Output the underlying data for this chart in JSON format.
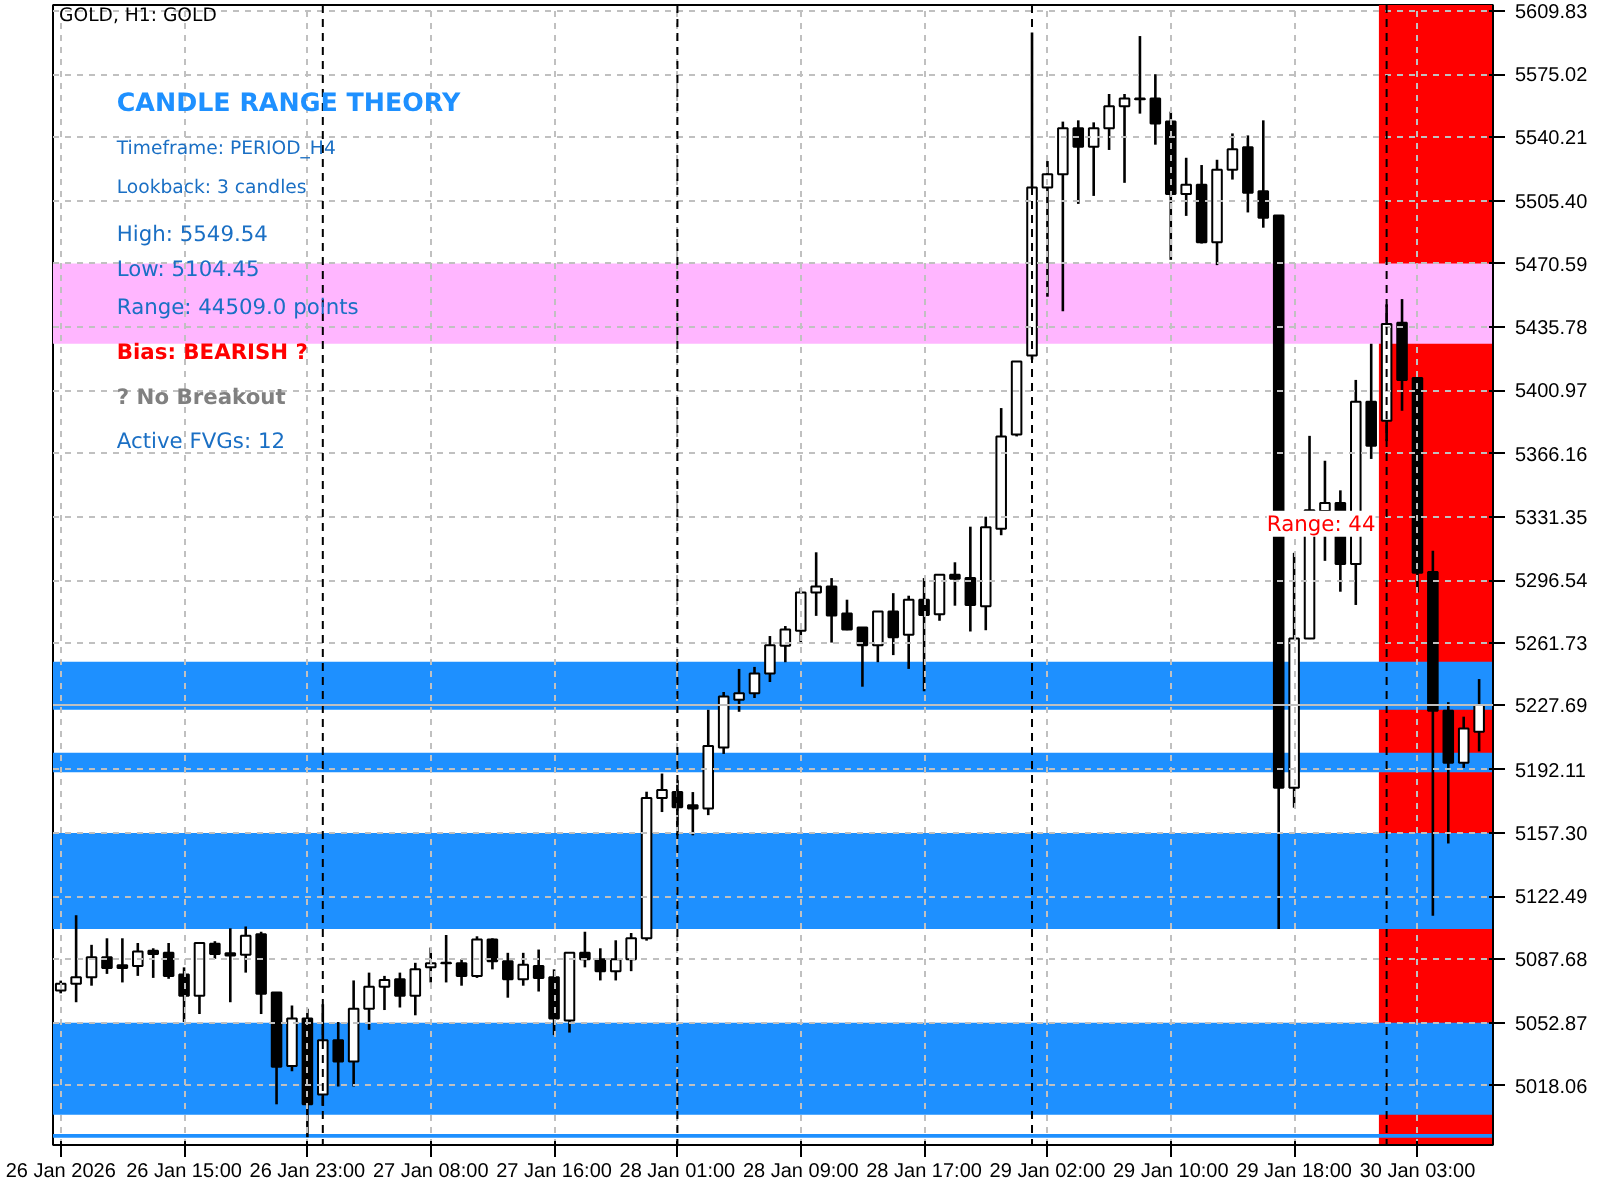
{
  "chart_data": {
    "type": "candlestick",
    "title": "GOLD, H1:  GOLD",
    "annotations": [
      "CANDLE RANGE THEORY",
      "Timeframe: PERIOD_H4",
      "Lookback: 3 candles",
      "High: 5549.54",
      "Low:  5104.45",
      "Range: 44509.0 points",
      "Bias: BEARISH ?",
      "? No Breakout",
      "Active FVGs: 12",
      "Range: 44"
    ],
    "categories": [
      "26 Jan 2026",
      null,
      null,
      null,
      null,
      null,
      null,
      null,
      "26 Jan 15:00",
      null,
      null,
      null,
      null,
      null,
      null,
      null,
      "26 Jan 23:00",
      null,
      null,
      null,
      null,
      null,
      null,
      null,
      "27 Jan 08:00",
      null,
      null,
      null,
      null,
      null,
      null,
      null,
      "27 Jan 16:00",
      null,
      null,
      null,
      null,
      null,
      null,
      null,
      "28 Jan 01:00",
      null,
      null,
      null,
      null,
      null,
      null,
      null,
      "28 Jan 09:00",
      null,
      null,
      null,
      null,
      null,
      null,
      null,
      "28 Jan 17:00",
      null,
      null,
      null,
      null,
      null,
      null,
      null,
      "29 Jan 02:00",
      null,
      null,
      null,
      null,
      null,
      null,
      null,
      "29 Jan 10:00",
      null,
      null,
      null,
      null,
      null,
      null,
      null,
      "29 Jan 18:00",
      null,
      null,
      null,
      null,
      null,
      null,
      null,
      "30 Jan 03:00",
      null,
      null,
      null,
      null
    ],
    "ohlc": [
      [
        5070.6,
        5076,
        5069,
        5074.3
      ],
      [
        5074.3,
        5112,
        5064.1,
        5077.9
      ],
      [
        5077.9,
        5095.7,
        5073.2,
        5088.8
      ],
      [
        5088.8,
        5099.3,
        5079.7,
        5083.0
      ],
      [
        5084.4,
        5099.3,
        5075,
        5083.0
      ],
      [
        5084.1,
        5096.7,
        5078.6,
        5092.0
      ],
      [
        5092.4,
        5093.8,
        5077.5,
        5090.6
      ],
      [
        5091.3,
        5096.7,
        5077,
        5078.6
      ],
      [
        5079.3,
        5083.3,
        5053.2,
        5067.7
      ],
      [
        5067.7,
        5096.7,
        5057.6,
        5096.7
      ],
      [
        5096.3,
        5097.7,
        5088,
        5090.6
      ],
      [
        5091,
        5104.8,
        5064.1,
        5089.8
      ],
      [
        5090.2,
        5105.8,
        5080.4,
        5100.7
      ],
      [
        5101.5,
        5102.9,
        5057.6,
        5068.8
      ],
      [
        5069.5,
        5069.5,
        5007.9,
        5028.6
      ],
      [
        5029,
        5062.3,
        5026.1,
        5055.1
      ],
      [
        5055.1,
        5060.5,
        4989.8,
        5007.9
      ],
      [
        5013.3,
        5063,
        5007,
        5043.1
      ],
      [
        5043.1,
        5053.2,
        5017.7,
        5031.5
      ],
      [
        5031.5,
        5076.1,
        5017.7,
        5060.5
      ],
      [
        5060.5,
        5080.4,
        5048.9,
        5072.6
      ],
      [
        5072.6,
        5078.6,
        5059.8,
        5076.4
      ],
      [
        5076.8,
        5080.4,
        5061.2,
        5067.7
      ],
      [
        5067.7,
        5085.8,
        5056.9,
        5082.2
      ],
      [
        5083.3,
        5094.2,
        5075,
        5085.5
      ],
      [
        5085.5,
        5101.1,
        5075,
        5085.8
      ],
      [
        5085.5,
        5087.7,
        5073.2,
        5078.6
      ],
      [
        5078.6,
        5100.4,
        5077.5,
        5098.6
      ],
      [
        5098.6,
        5099.3,
        5082.2,
        5086.6
      ],
      [
        5086.6,
        5091.3,
        5066.6,
        5076.8
      ],
      [
        5076.8,
        5091.3,
        5073.2,
        5084.8
      ],
      [
        5084.1,
        5093.1,
        5070,
        5077.5
      ],
      [
        5077.9,
        5082.2,
        5046,
        5055.1
      ],
      [
        5054,
        5091.3,
        5047.4,
        5091.3
      ],
      [
        5091.3,
        5102.9,
        5083.3,
        5087.7
      ],
      [
        5087.7,
        5093.8,
        5076.1,
        5081.2
      ],
      [
        5081.2,
        5098.2,
        5076.1,
        5087.7
      ],
      [
        5087.7,
        5102.2,
        5081.2,
        5099.3
      ],
      [
        5099.3,
        5180,
        5098,
        5176.5
      ],
      [
        5176.5,
        5190,
        5168.8,
        5180.9
      ],
      [
        5179.8,
        5186.3,
        5156,
        5171.5
      ],
      [
        5172.5,
        5179.8,
        5156,
        5170.7
      ],
      [
        5170.7,
        5225.1,
        5167.1,
        5205.2
      ],
      [
        5204.4,
        5234.9,
        5200.8,
        5232.4
      ],
      [
        5230.6,
        5247.6,
        5224,
        5234.2
      ],
      [
        5234.2,
        5248.7,
        5231.6,
        5245.1
      ],
      [
        5245.1,
        5265.7,
        5240.4,
        5260.6
      ],
      [
        5260.3,
        5271.2,
        5251.3,
        5269.3
      ],
      [
        5268.6,
        5292.2,
        5262.1,
        5289.7
      ],
      [
        5289.7,
        5311.8,
        5276.8,
        5293
      ],
      [
        5293,
        5297.6,
        5262.1,
        5277
      ],
      [
        5278.1,
        5285.7,
        5268.9,
        5269.3
      ],
      [
        5270.4,
        5270.4,
        5237.8,
        5260.6
      ],
      [
        5260.6,
        5279.2,
        5251.3,
        5279.2
      ],
      [
        5279.2,
        5289.3,
        5255.2,
        5265
      ],
      [
        5266.4,
        5287.9,
        5247.6,
        5285.7
      ],
      [
        5285.7,
        5297.6,
        5235.3,
        5277.3
      ],
      [
        5277.7,
        5299.4,
        5274.1,
        5299.4
      ],
      [
        5299.4,
        5306.3,
        5282.4,
        5297.3
      ],
      [
        5297.6,
        5325.9,
        5268.2,
        5282.8
      ],
      [
        5282.1,
        5331.4,
        5268.9,
        5325.6
      ],
      [
        5324.8,
        5391.2,
        5321.2,
        5375.6
      ],
      [
        5376.7,
        5416.9,
        5375.6,
        5416.9
      ],
      [
        5420.2,
        5597.9,
        5418,
        5512.6
      ],
      [
        5512.6,
        5527.2,
        5452.5,
        5519.9
      ],
      [
        5519.9,
        5548.9,
        5444.5,
        5545.3
      ],
      [
        5545.3,
        5549.6,
        5503.6,
        5535.1
      ],
      [
        5535.1,
        5548.5,
        5508,
        5545.3
      ],
      [
        5545.3,
        5564.1,
        5533.3,
        5557.3
      ],
      [
        5557.3,
        5564.1,
        5515.2,
        5561.6
      ],
      [
        5561.6,
        5596,
        5553.3,
        5561.2
      ],
      [
        5561.6,
        5575,
        5536.2,
        5547.8
      ],
      [
        5548.9,
        5554.4,
        5472.8,
        5509
      ],
      [
        5509,
        5529,
        5497,
        5514.1
      ],
      [
        5514.1,
        5525,
        5481.8,
        5482.5
      ],
      [
        5482.5,
        5527.9,
        5469.9,
        5522.4
      ],
      [
        5522.4,
        5542.4,
        5517,
        5533.7
      ],
      [
        5534.8,
        5541.3,
        5498.9,
        5509.8
      ],
      [
        5510.5,
        5549.6,
        5490.5,
        5496
      ],
      [
        5497.2,
        5497.2,
        5104.4,
        5182.2
      ],
      [
        5182.2,
        5311.5,
        5171.2,
        5264.4
      ],
      [
        5264.4,
        5375.9,
        5264,
        5335
      ],
      [
        5334.6,
        5362.2,
        5307.1,
        5339
      ],
      [
        5339,
        5345.9,
        5290.1,
        5305.3
      ],
      [
        5305.3,
        5406.7,
        5282.8,
        5394.7
      ],
      [
        5394.7,
        5426.6,
        5363.2,
        5370.5
      ],
      [
        5384.2,
        5448.3,
        5373,
        5437.5
      ],
      [
        5438.2,
        5451.2,
        5389.7,
        5406.7
      ],
      [
        5407.8,
        5407.8,
        5289.7,
        5300.6
      ],
      [
        5301,
        5312.6,
        5111.7,
        5224.6
      ],
      [
        5224.6,
        5229.3,
        5151.5,
        5196
      ],
      [
        5196,
        5221.3,
        5193.1,
        5214.8
      ],
      [
        5213,
        5242,
        5202.2,
        5227.69
      ]
    ],
    "ylim": [
      4985.5,
      5613.1
    ],
    "yticks": [
      5018.06,
      5052.87,
      5087.68,
      5122.49,
      {
        "value": 5157.3,
        "label": "5157.30"
      },
      5192.11,
      5227.69,
      5261.73,
      5296.54,
      5331.35,
      5366.16,
      5400.97,
      5435.78,
      5470.59,
      {
        "value": 5505.4,
        "label": "5505.40"
      },
      5540.21,
      5575.02,
      5609.83
    ],
    "grid": true,
    "ref_lines": [
      {
        "axis": "y",
        "value": 5227.69,
        "color": "#c0c0c0",
        "line_style": "solid"
      }
    ],
    "bands": [
      {
        "axis": "y",
        "from": 5426.6,
        "to": 5470.8,
        "color": "#ffb6ff"
      },
      {
        "axis": "y",
        "from": 5002.1,
        "to": 5052.87,
        "color": "#1e90ff"
      },
      {
        "axis": "y",
        "from": 4989.5,
        "to": 4991.5,
        "color": "#1e90ff"
      },
      {
        "axis": "y",
        "from": 5104.45,
        "to": 5157.3,
        "color": "#1e90ff"
      },
      {
        "axis": "y",
        "from": 5190.7,
        "to": 5201.5,
        "color": "#1e90ff"
      },
      {
        "axis": "y",
        "from": 5225.1,
        "to": 5251.6,
        "color": "#1e90ff"
      }
    ]
  }
}
